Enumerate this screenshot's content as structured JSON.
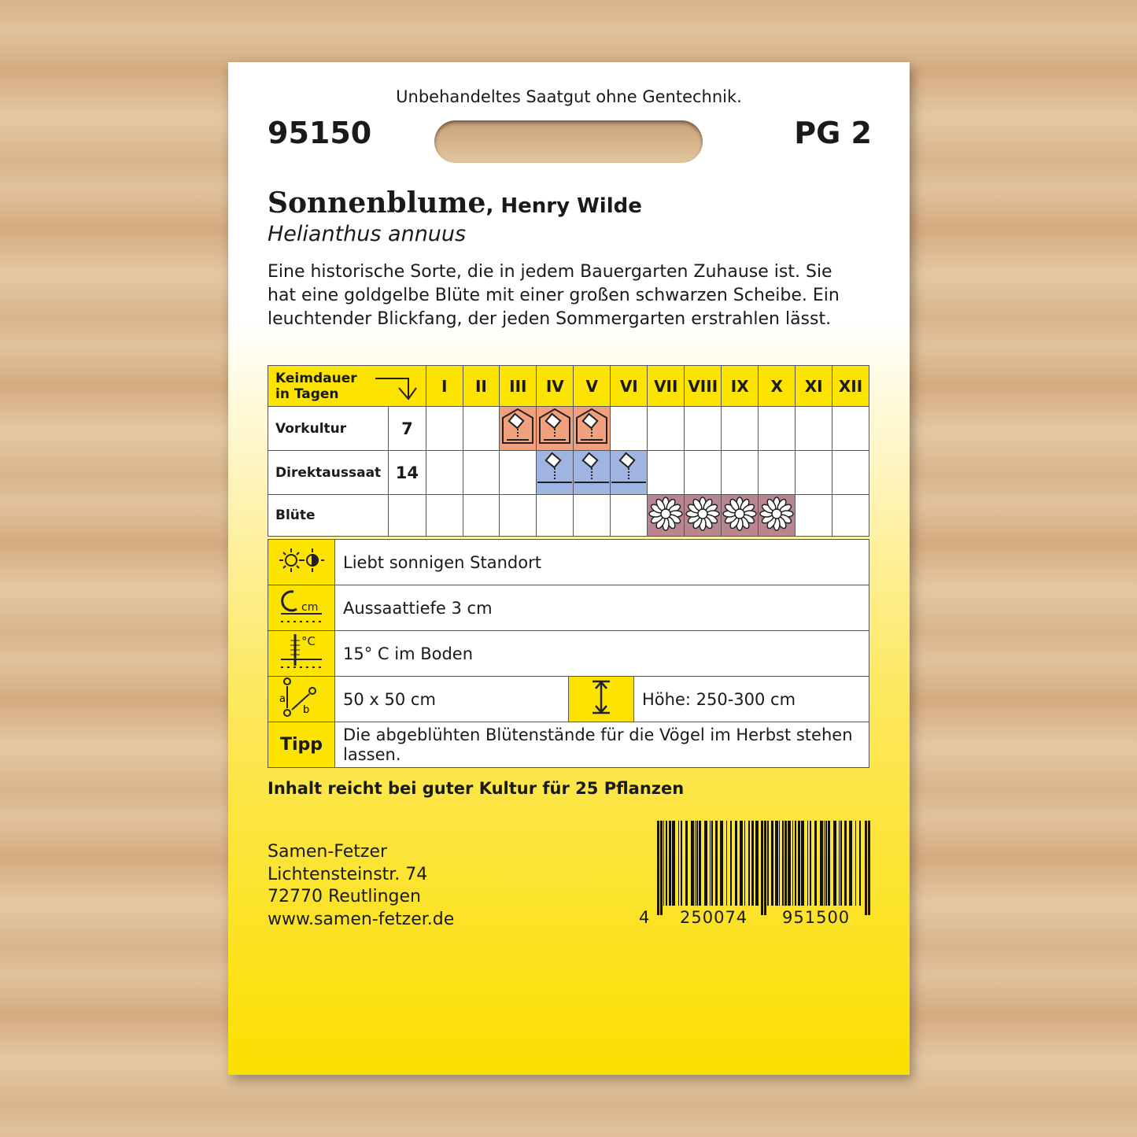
{
  "top_note": "Unbehandeltes Saatgut ohne Gentechnik.",
  "article_no": "95150",
  "price_group": "PG 2",
  "title": "Sonnenblume",
  "variety": ", Henry Wilde",
  "latin": "Helianthus annuus",
  "description": "Eine historische Sorte, die in jedem Bauergarten Zuhause ist. Sie hat eine goldgelbe Blüte mit einer großen schwarzen Scheibe. Ein leuchtender Blickfang, der jeden Sommergarten erstrahlen lässt.",
  "calendar": {
    "header_line1": "Keimdauer",
    "header_line2": "in Tagen",
    "months": [
      "I",
      "II",
      "III",
      "IV",
      "V",
      "VI",
      "VII",
      "VIII",
      "IX",
      "X",
      "XI",
      "XII"
    ],
    "rows": [
      {
        "label": "Vorkultur",
        "days": "7",
        "active": [
          3,
          4,
          5
        ],
        "color": "#f0a07c",
        "icon": "greenhouse-seed-icon"
      },
      {
        "label": "Direktaussaat",
        "days": "14",
        "active": [
          4,
          5,
          6
        ],
        "color": "#9fb4e0",
        "icon": "seed-sowing-icon"
      },
      {
        "label": "Blüte",
        "days": "",
        "active": [
          7,
          8,
          9,
          10
        ],
        "color": "#b88590",
        "icon": "flower-icon"
      }
    ]
  },
  "info": {
    "sun": "Liebt sonnigen Standort",
    "depth": "Aussaattiefe 3 cm",
    "temp": "15° C im Boden",
    "spacing": "50 x 50 cm",
    "height": "Höhe: 250-300 cm",
    "tip_label": "Tipp",
    "tip": "Die abgeblühten Blütenstände für die Vögel im Herbst stehen lassen."
  },
  "content_note": "Inhalt reicht bei guter Kultur für 25 Pflanzen",
  "address": [
    "Samen-Fetzer",
    "Lichtensteinstr. 74",
    "72770 Reutlingen",
    "www.samen-fetzer.de"
  ],
  "barcode": {
    "first": "4",
    "left": "250074",
    "right": "951500"
  }
}
